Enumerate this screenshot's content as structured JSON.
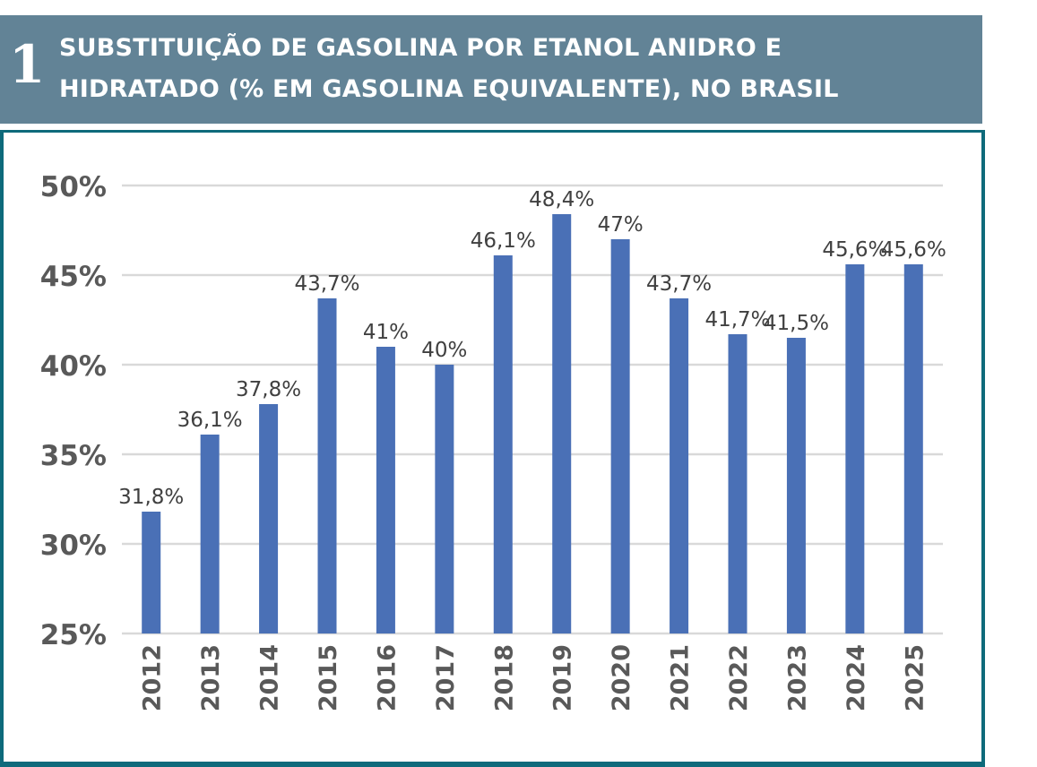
{
  "header": {
    "number": "1",
    "title_line1": "SUBSTITUIÇÃO DE GASOLINA POR ETANOL ANIDRO E",
    "title_line2": "HIDRATADO (% EM GASOLINA EQUIVALENTE), NO BRASIL"
  },
  "colors": {
    "header_bg": "#628396",
    "frame_border": "#0e6a7b",
    "bar": "#4a70b6",
    "grid": "#d9d9d9",
    "axis_text": "#595959",
    "label_text": "#404040"
  },
  "chart_data": {
    "type": "bar",
    "title": "SUBSTITUIÇÃO DE GASOLINA POR ETANOL ANIDRO E HIDRATADO (% EM GASOLINA EQUIVALENTE), NO BRASIL",
    "xlabel": "",
    "ylabel": "",
    "categories": [
      "2012",
      "2013",
      "2014",
      "2015",
      "2016",
      "2017",
      "2018",
      "2019",
      "2020",
      "2021",
      "2022",
      "2023",
      "2024",
      "2025"
    ],
    "values": [
      31.8,
      36.1,
      37.8,
      43.7,
      41,
      40,
      46.1,
      48.4,
      47,
      43.7,
      41.7,
      41.5,
      45.6,
      45.6
    ],
    "data_labels": [
      "31,8%",
      "36,1%",
      "37,8%",
      "43,7%",
      "41%",
      "40%",
      "46,1%",
      "48,4%",
      "47%",
      "43,7%",
      "41,7%",
      "41,5%",
      "45,6%",
      "45,6%"
    ],
    "ylim": [
      25,
      50
    ],
    "yticks": [
      25,
      30,
      35,
      40,
      45,
      50
    ],
    "ytick_labels": [
      "25%",
      "30%",
      "35%",
      "40%",
      "45%",
      "50%"
    ],
    "grid": true,
    "legend": "none"
  }
}
